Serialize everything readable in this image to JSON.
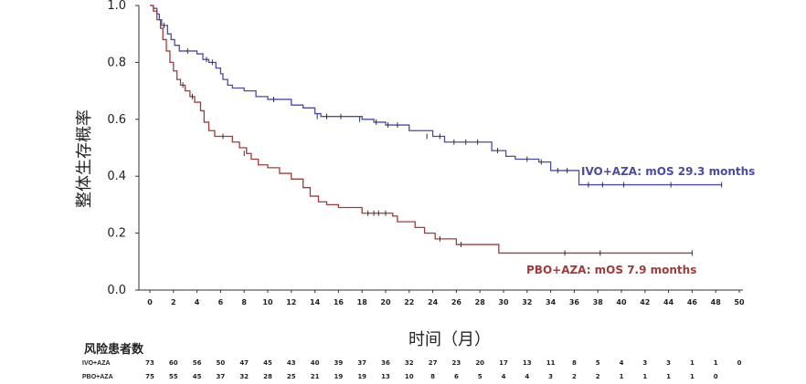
{
  "chart_data": {
    "type": "line",
    "title": "",
    "ylabel": "整体生存概率",
    "xlabel": "时间（月）",
    "xlim": [
      0,
      50
    ],
    "ylim": [
      0,
      1.0
    ],
    "x_ticks": [
      0,
      2,
      4,
      6,
      8,
      10,
      12,
      14,
      16,
      18,
      20,
      22,
      24,
      26,
      28,
      30,
      32,
      34,
      36,
      38,
      40,
      42,
      44,
      46,
      48,
      50
    ],
    "y_ticks": [
      "0.0",
      "0.2",
      "0.4",
      "0.6",
      "0.8",
      "1.0"
    ],
    "grid": false,
    "colors": {
      "ivo": "#4A4AA8",
      "pbo": "#A33A3A"
    },
    "series": [
      {
        "name": "IVO+AZA",
        "color": "#4A4AA8",
        "annotation": "IVO+AZA: mOS 29.3 months",
        "steps": [
          [
            0,
            1.0
          ],
          [
            0.3,
            0.99
          ],
          [
            0.6,
            0.97
          ],
          [
            0.8,
            0.95
          ],
          [
            1,
            0.93
          ],
          [
            1.5,
            0.9
          ],
          [
            1.8,
            0.88
          ],
          [
            2.1,
            0.86
          ],
          [
            2.5,
            0.84
          ],
          [
            4,
            0.83
          ],
          [
            4.5,
            0.81
          ],
          [
            5,
            0.8
          ],
          [
            5.6,
            0.78
          ],
          [
            6,
            0.76
          ],
          [
            6.2,
            0.74
          ],
          [
            6.6,
            0.72
          ],
          [
            7,
            0.71
          ],
          [
            8,
            0.7
          ],
          [
            9,
            0.68
          ],
          [
            10,
            0.67
          ],
          [
            12,
            0.65
          ],
          [
            13,
            0.64
          ],
          [
            14,
            0.62
          ],
          [
            14.5,
            0.61
          ],
          [
            18,
            0.6
          ],
          [
            19,
            0.59
          ],
          [
            20,
            0.58
          ],
          [
            22,
            0.56
          ],
          [
            24,
            0.54
          ],
          [
            25,
            0.52
          ],
          [
            29,
            0.49
          ],
          [
            30.2,
            0.47
          ],
          [
            31,
            0.46
          ],
          [
            33,
            0.45
          ],
          [
            34,
            0.42
          ],
          [
            36.4,
            0.37
          ],
          [
            48.5,
            0.37
          ]
        ],
        "censors": [
          [
            1.2,
            0.93
          ],
          [
            3.2,
            0.84
          ],
          [
            4.8,
            0.81
          ],
          [
            5.3,
            0.8
          ],
          [
            10.5,
            0.67
          ],
          [
            14.2,
            0.61
          ],
          [
            15,
            0.61
          ],
          [
            16.2,
            0.61
          ],
          [
            17.8,
            0.6
          ],
          [
            19.2,
            0.59
          ],
          [
            20.2,
            0.58
          ],
          [
            21,
            0.58
          ],
          [
            23.5,
            0.54
          ],
          [
            24.6,
            0.54
          ],
          [
            25.8,
            0.52
          ],
          [
            26.8,
            0.52
          ],
          [
            27.8,
            0.52
          ],
          [
            29.5,
            0.49
          ],
          [
            32,
            0.46
          ],
          [
            33.2,
            0.45
          ],
          [
            34.6,
            0.42
          ],
          [
            35.4,
            0.42
          ],
          [
            37.2,
            0.37
          ],
          [
            38.4,
            0.37
          ],
          [
            40.2,
            0.37
          ],
          [
            44.2,
            0.37
          ],
          [
            48.5,
            0.37
          ]
        ]
      },
      {
        "name": "PBO+AZA",
        "color": "#A33A3A",
        "annotation": "PBO+AZA: mOS 7.9 months",
        "steps": [
          [
            0,
            1.0
          ],
          [
            0.3,
            0.98
          ],
          [
            0.6,
            0.95
          ],
          [
            0.9,
            0.92
          ],
          [
            1.1,
            0.88
          ],
          [
            1.4,
            0.84
          ],
          [
            1.7,
            0.8
          ],
          [
            2,
            0.77
          ],
          [
            2.3,
            0.74
          ],
          [
            2.6,
            0.72
          ],
          [
            3,
            0.7
          ],
          [
            3.4,
            0.68
          ],
          [
            3.8,
            0.66
          ],
          [
            4.3,
            0.63
          ],
          [
            4.6,
            0.59
          ],
          [
            5,
            0.56
          ],
          [
            5.5,
            0.54
          ],
          [
            7,
            0.52
          ],
          [
            7.6,
            0.5
          ],
          [
            8.2,
            0.48
          ],
          [
            8.6,
            0.46
          ],
          [
            9.2,
            0.44
          ],
          [
            10,
            0.43
          ],
          [
            11,
            0.41
          ],
          [
            12,
            0.39
          ],
          [
            13,
            0.36
          ],
          [
            13.6,
            0.33
          ],
          [
            14.3,
            0.31
          ],
          [
            15,
            0.3
          ],
          [
            16,
            0.29
          ],
          [
            18,
            0.27
          ],
          [
            20.6,
            0.26
          ],
          [
            21,
            0.24
          ],
          [
            22.5,
            0.22
          ],
          [
            23.3,
            0.2
          ],
          [
            24.2,
            0.18
          ],
          [
            26,
            0.16
          ],
          [
            29.6,
            0.13
          ],
          [
            46,
            0.13
          ]
        ],
        "censors": [
          [
            2.8,
            0.72
          ],
          [
            3.6,
            0.68
          ],
          [
            6.2,
            0.54
          ],
          [
            8,
            0.48
          ],
          [
            18.5,
            0.27
          ],
          [
            19,
            0.27
          ],
          [
            19.4,
            0.27
          ],
          [
            20,
            0.27
          ],
          [
            24.6,
            0.18
          ],
          [
            26.4,
            0.16
          ],
          [
            35.2,
            0.13
          ],
          [
            38.2,
            0.13
          ],
          [
            46,
            0.13
          ]
        ]
      }
    ],
    "risk_table": {
      "title": "风险患者数",
      "times": [
        0,
        2,
        4,
        6,
        8,
        10,
        12,
        14,
        16,
        18,
        20,
        22,
        24,
        26,
        28,
        30,
        32,
        34,
        36,
        38,
        40,
        42,
        44,
        46,
        48,
        50
      ],
      "rows": [
        {
          "label": "IVO+AZA",
          "values": [
            "73",
            "60",
            "56",
            "50",
            "47",
            "45",
            "43",
            "40",
            "39",
            "37",
            "36",
            "32",
            "27",
            "23",
            "20",
            "17",
            "13",
            "11",
            "8",
            "5",
            "4",
            "3",
            "3",
            "1",
            "1",
            "0"
          ]
        },
        {
          "label": "PBO+AZA",
          "values": [
            "75",
            "55",
            "45",
            "37",
            "32",
            "28",
            "25",
            "21",
            "19",
            "19",
            "13",
            "10",
            "8",
            "6",
            "5",
            "4",
            "4",
            "3",
            "2",
            "2",
            "1",
            "1",
            "1",
            "1",
            "0",
            ""
          ]
        }
      ]
    }
  }
}
